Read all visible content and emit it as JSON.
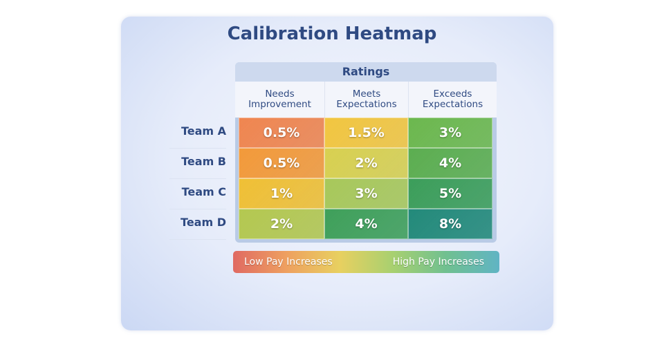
{
  "chart_data": {
    "type": "heatmap",
    "title": "Calibration Heatmap",
    "column_group_label": "Ratings",
    "columns": [
      "Needs Improvement",
      "Meets Expectations",
      "Exceeds Expectations"
    ],
    "rows": [
      "Team A",
      "Team B",
      "Team C",
      "Team D"
    ],
    "values": [
      [
        0.5,
        1.5,
        3
      ],
      [
        0.5,
        2,
        4
      ],
      [
        1,
        3,
        5
      ],
      [
        2,
        4,
        8
      ]
    ],
    "labels": [
      [
        "0.5%",
        "1.5%",
        "3%"
      ],
      [
        "0.5%",
        "2%",
        "4%"
      ],
      [
        "1%",
        "3%",
        "5%"
      ],
      [
        "2%",
        "4%",
        "8%"
      ]
    ],
    "colors": [
      [
        "#f08650",
        "#f2c640",
        "#6cb84e"
      ],
      [
        "#f39a3a",
        "#d8d050",
        "#5cae50"
      ],
      [
        "#f0c035",
        "#a8c85a",
        "#3c9e5a"
      ],
      [
        "#b4c850",
        "#3fa05a",
        "#238a7a"
      ]
    ],
    "legend": {
      "low": "Low Pay Increases",
      "high": "High Pay Increases"
    }
  }
}
